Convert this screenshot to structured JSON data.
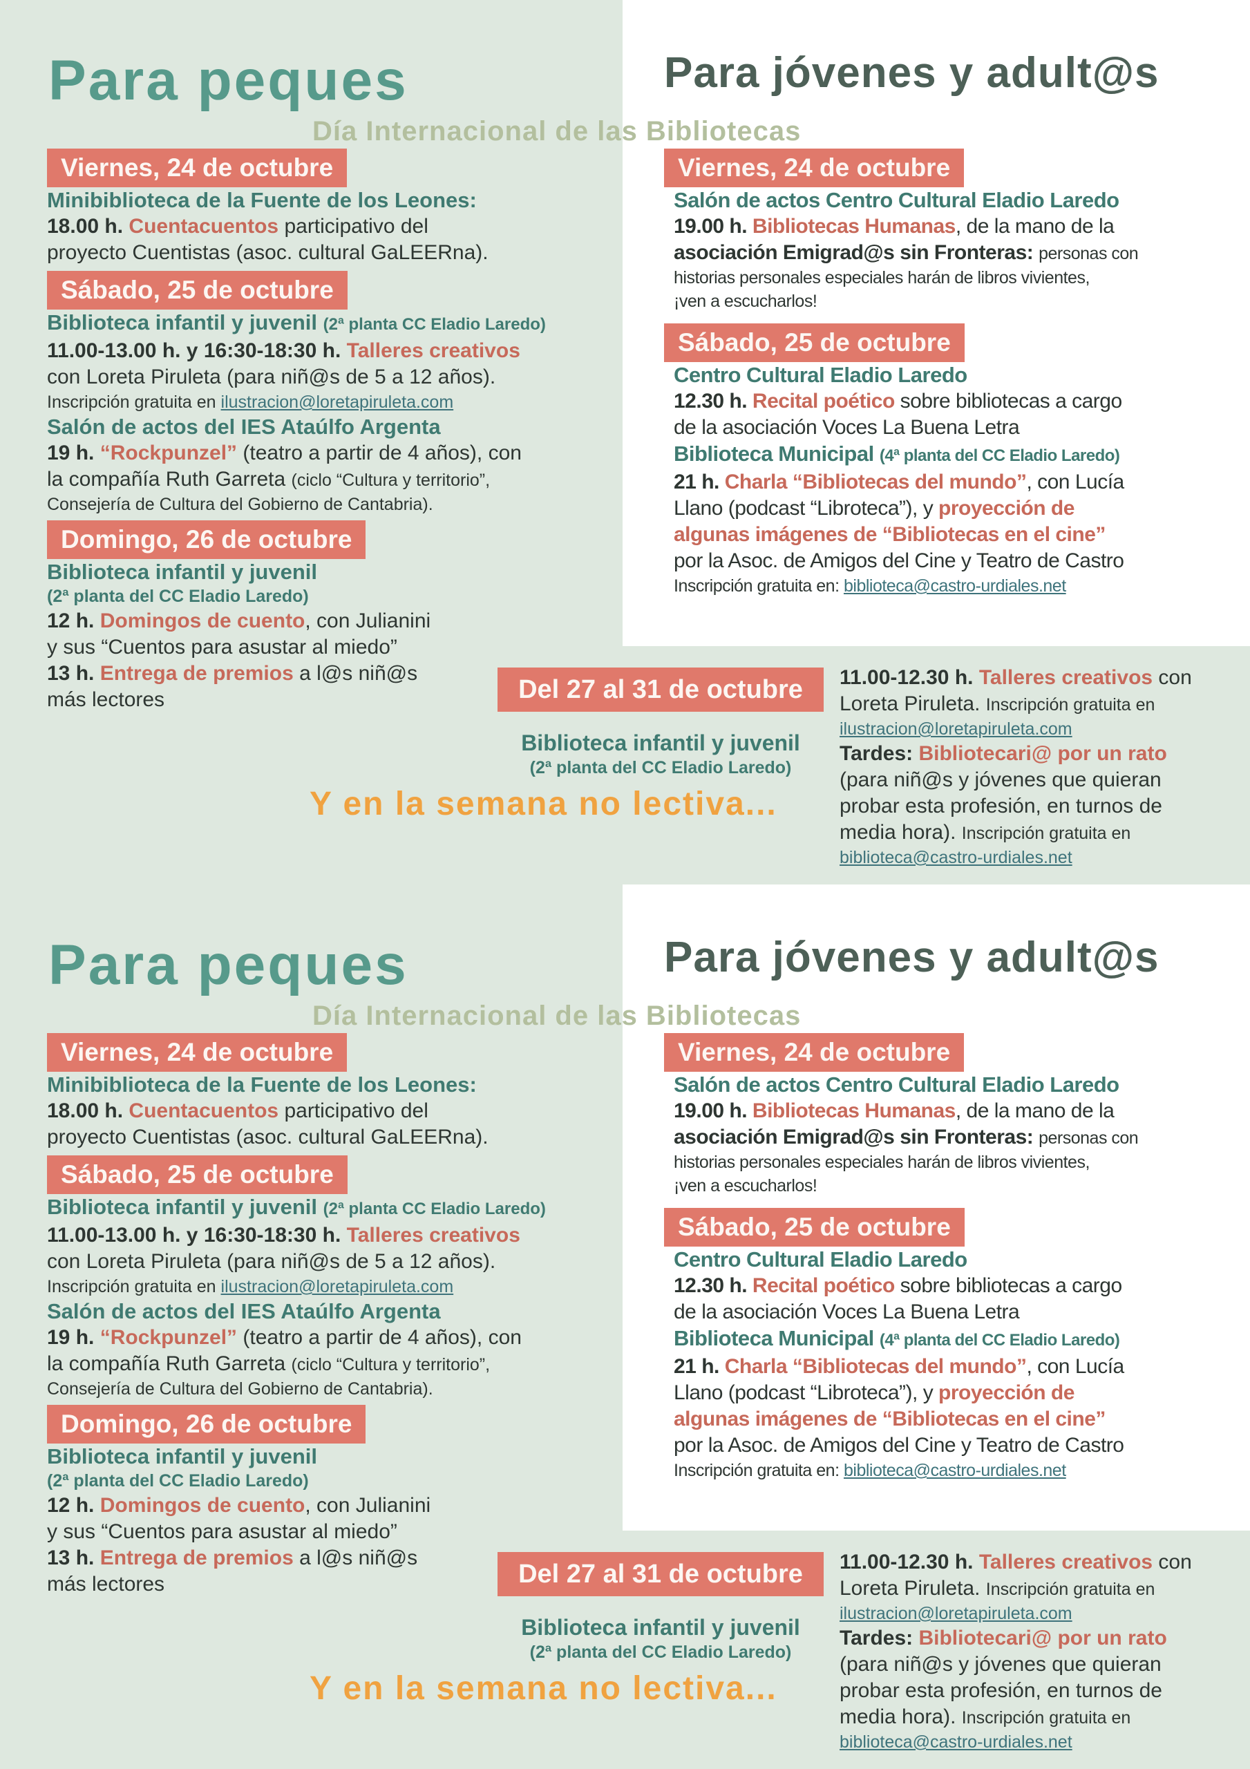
{
  "page": {
    "copies": 2
  },
  "colors": {
    "background_green": "#dee8df",
    "panel_white": "#ffffff",
    "date_box_background": "#e0796b",
    "date_box_text": "#fcf6f2",
    "heading_teal": "#3f7a71",
    "title_left_teal": "#579a8b",
    "title_right_green": "#4d6057",
    "subtitle_sage": "#b3bf9e",
    "accent_salmon": "#c7695a",
    "body_dark": "#2e3632",
    "link_teal": "#3e737b",
    "note_orange": "#f0a240"
  },
  "subtitle": "Día Internacional de las Bibliotecas",
  "left": {
    "title": "Para peques",
    "viernes": {
      "header": "Viernes, 24 de octubre",
      "venue": "Minibiblioteca de la Fuente de los Leones:",
      "l1_time": "18.00 h. ",
      "l1_accent": "Cuentacuentos",
      "l1_rest": " participativo del",
      "l2": "proyecto Cuentistas (asoc. cultural GaLEERna)."
    },
    "sabado": {
      "header": "Sábado, 25 de octubre",
      "b1_venue": "Biblioteca infantil y juvenil ",
      "b1_venue_small": "(2ª planta CC Eladio Laredo)",
      "b1_l1_time": "11.00-13.00 h. y 16:30-18:30 h. ",
      "b1_l1_accent": "Talleres creativos",
      "b1_l2": "con Loreta Piruleta (para niñ@s de 5 a 12 años).",
      "b1_l3_small": "Inscripción gratuita en ",
      "b1_l3_link": "ilustracion@loretapiruleta.com",
      "b2_venue": "Salón de actos del IES Ataúlfo Argenta",
      "b2_l1_time": "19 h. ",
      "b2_l1_accent": "“Rockpunzel”",
      "b2_l1_rest": " (teatro a partir de 4 años), con",
      "b2_l2": "la compañía Ruth Garreta ",
      "b2_l2_small": "(ciclo “Cultura y territorio”,",
      "b2_l3_small": "Consejería de Cultura del Gobierno de Cantabria)."
    },
    "domingo": {
      "header": "Domingo, 26 de octubre",
      "venue": "Biblioteca infantil y juvenil",
      "venue_small": "(2ª planta del CC Eladio Laredo)",
      "l1_time": "12 h. ",
      "l1_accent": "Domingos de cuento",
      "l1_rest": ", con Julianini",
      "l2": "y sus “Cuentos para asustar al miedo”",
      "l3_time": "13 h. ",
      "l3_accent": "Entrega de premios",
      "l3_rest": " a l@s niñ@s",
      "l4": "más lectores"
    }
  },
  "right": {
    "title": "Para jóvenes y adult@s",
    "viernes": {
      "header": "Viernes, 24 de octubre",
      "venue": "Salón de actos Centro Cultural Eladio Laredo",
      "l1_time": "19.00 h. ",
      "l1_accent": "Bibliotecas Humanas",
      "l1_rest": ", de la mano de la",
      "l2_bold": "asociación Emigrad@s sin Fronteras: ",
      "l2_small": "personas con",
      "l3_small": "historias personales especiales harán de libros vivientes,",
      "l4_small": "¡ven a escucharlos!"
    },
    "sabado": {
      "header": "Sábado, 25 de octubre",
      "b1_venue": "Centro Cultural Eladio Laredo",
      "b1_l1_time": "12.30 h. ",
      "b1_l1_accent": "Recital poético",
      "b1_l1_rest": " sobre bibliotecas a cargo",
      "b1_l2": "de la asociación Voces La Buena Letra",
      "b2_venue": "Biblioteca Municipal ",
      "b2_venue_small": "(4ª planta del CC Eladio Laredo)",
      "b2_l1_time": "21 h. ",
      "b2_l1_accent": "Charla “Bibliotecas del mundo”",
      "b2_l1_rest": ", con Lucía",
      "b2_l2": "Llano (podcast “Libroteca”), y ",
      "b2_l2_accent": "proyección de",
      "b2_l3_accent": "algunas imágenes de “Bibliotecas en el cine”",
      "b2_l4": "por la Asoc. de Amigos del Cine y Teatro de Castro",
      "b2_l5_small": "Inscripción gratuita en: ",
      "b2_l5_link": "biblioteca@castro-urdiales.net"
    }
  },
  "band": {
    "header": "Del 27 al 31 de octubre",
    "venue": "Biblioteca infantil y juvenil",
    "venue_small": "(2ª planta del CC Eladio Laredo)",
    "nolectiva": "Y en la semana no lectiva...",
    "right": {
      "l1_time": "11.00-12.30 h. ",
      "l1_accent": "Talleres creativos",
      "l1_rest": " con",
      "l2": "Loreta Piruleta. ",
      "l2_small": "Inscripción gratuita en",
      "l3_link": "ilustracion@loretapiruleta.com",
      "l4_bold": "Tardes: ",
      "l4_accent": "Bibliotecari@ por un rato",
      "l5": "(para niñ@s y jóvenes que quieran",
      "l6": "probar esta profesión, en turnos de",
      "l7": "media hora). ",
      "l7_small": "Inscripción gratuita en",
      "l8_link": "biblioteca@castro-urdiales.net"
    }
  }
}
